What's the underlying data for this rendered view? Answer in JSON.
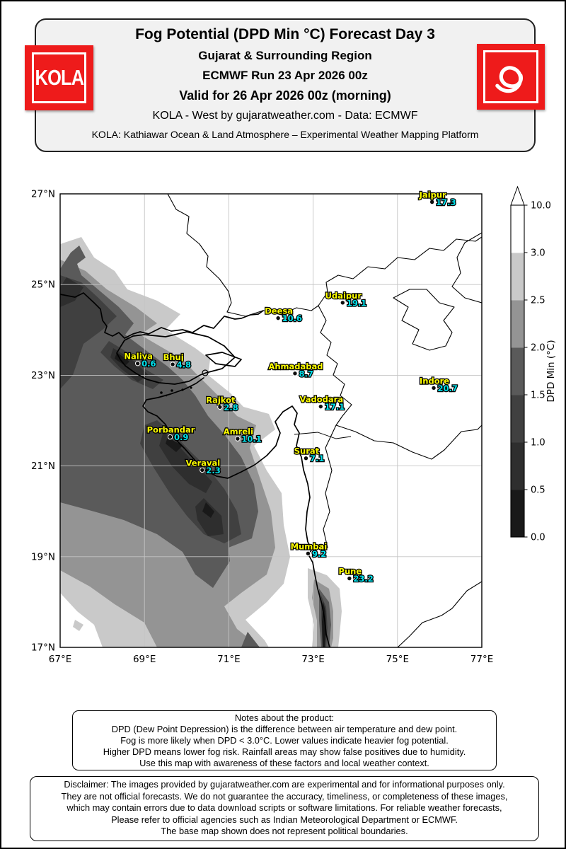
{
  "colors": {
    "brand_red": "#ee1b1b",
    "station_name": "#ffff00",
    "station_value": "#00e5f0",
    "grid": "#c4c4c4",
    "header_bg": "#f1f1f1"
  },
  "header": {
    "title": "Fog Potential (DPD Min °C) Forecast Day 3",
    "subtitle1": "Gujarat & Surrounding Region",
    "subtitle2": "ECMWF Run 23 Apr 2026 00z",
    "subtitle3": "Valid for 26 Apr 2026 00z (morning)",
    "credit": "KOLA - West by gujaratweather.com  -  Data: ECMWF",
    "tagline": "KOLA: Kathiawar Ocean & Land Atmosphere – Experimental Weather Mapping Platform",
    "logo_text": "KOLA"
  },
  "map": {
    "extent": {
      "lon_min": 67,
      "lon_max": 77,
      "lat_min": 17,
      "lat_max": 27
    },
    "lon_ticks": [
      {
        "lon": 67,
        "label": "67°E"
      },
      {
        "lon": 69,
        "label": "69°E"
      },
      {
        "lon": 71,
        "label": "71°E"
      },
      {
        "lon": 73,
        "label": "73°E"
      },
      {
        "lon": 75,
        "label": "75°E"
      },
      {
        "lon": 77,
        "label": "77°E"
      }
    ],
    "lat_ticks": [
      {
        "lat": 27,
        "label": "27°N"
      },
      {
        "lat": 25,
        "label": "25°N"
      },
      {
        "lat": 23,
        "label": "23°N"
      },
      {
        "lat": 21,
        "label": "21°N"
      },
      {
        "lat": 19,
        "label": "19°N"
      },
      {
        "lat": 17,
        "label": "17°N"
      }
    ],
    "stations": [
      {
        "name": "Jaipur",
        "value": "17.3",
        "lon": 75.82,
        "lat": 26.82
      },
      {
        "name": "Udaipur",
        "value": "19.1",
        "lon": 73.7,
        "lat": 24.6
      },
      {
        "name": "Deesa",
        "value": "10.6",
        "lon": 72.17,
        "lat": 24.26
      },
      {
        "name": "Ahmadabad",
        "value": "8.7",
        "lon": 72.57,
        "lat": 23.04
      },
      {
        "name": "Indore",
        "value": "20.7",
        "lon": 75.86,
        "lat": 22.72
      },
      {
        "name": "Vadodara",
        "value": "17.1",
        "lon": 73.18,
        "lat": 22.31
      },
      {
        "name": "Rajkot",
        "value": "2.8",
        "lon": 70.79,
        "lat": 22.3
      },
      {
        "name": "Bhuj",
        "value": "4.8",
        "lon": 69.67,
        "lat": 23.24
      },
      {
        "name": "Naliya",
        "value": "0.6",
        "lon": 68.84,
        "lat": 23.26
      },
      {
        "name": "Porbandar",
        "value": "0.9",
        "lon": 69.61,
        "lat": 21.64
      },
      {
        "name": "Amreli",
        "value": "10.1",
        "lon": 71.21,
        "lat": 21.6
      },
      {
        "name": "Veraval",
        "value": "2.3",
        "lon": 70.37,
        "lat": 20.91
      },
      {
        "name": "Surat",
        "value": "7.1",
        "lon": 72.83,
        "lat": 21.17
      },
      {
        "name": "Mumbai",
        "value": "9.2",
        "lon": 72.88,
        "lat": 19.07
      },
      {
        "name": "Pune",
        "value": "23.2",
        "lon": 73.86,
        "lat": 18.52
      }
    ]
  },
  "colorbar": {
    "label": "DPD Min (°C)",
    "tick_labels": [
      "0.0",
      "0.5",
      "1.0",
      "1.5",
      "2.0",
      "2.5",
      "3.0",
      "10.0"
    ],
    "segment_colors": [
      "#191919",
      "#2e2e2e",
      "#404040",
      "#5a5a5a",
      "#949494",
      "#c9c9c9",
      "#ffffff"
    ],
    "extend_max": true
  },
  "notes": {
    "lines": [
      "Notes about the product:",
      "DPD (Dew Point Depression) is the difference between air temperature and dew point.",
      "Fog is more likely when DPD < 3.0°C. Lower values indicate heavier fog potential.",
      "Higher DPD means lower fog risk. Rainfall areas may show false positives due to humidity.",
      "Use this map with awareness of these factors and local weather context."
    ]
  },
  "disclaimer": {
    "lines": [
      "Disclaimer: The images provided by gujaratweather.com are experimental and for informational purposes only.",
      "They are not official forecasts. We do not guarantee the accuracy, timeliness, or completeness of these images,",
      "which may contain errors due to data download scripts or software limitations. For reliable weather forecasts,",
      "Please refer to official agencies such as Indian Meteorological Department or ECMWF.",
      "The base map shown does not represent political boundaries."
    ]
  },
  "chart_data": {
    "type": "map",
    "title": "Fog Potential (DPD Min °C) Forecast Day 3",
    "region": "Gujarat & Surrounding Region",
    "extent": {
      "lon": [
        67,
        77
      ],
      "lat": [
        17,
        27
      ]
    },
    "scale_levels_c": [
      0.0,
      0.5,
      1.0,
      1.5,
      2.0,
      2.5,
      3.0,
      10.0
    ],
    "station_values_c": {
      "Jaipur": 17.3,
      "Udaipur": 19.1,
      "Deesa": 10.6,
      "Ahmadabad": 8.7,
      "Indore": 20.7,
      "Vadodara": 17.1,
      "Rajkot": 2.8,
      "Bhuj": 4.8,
      "Naliya": 0.6,
      "Porbandar": 0.9,
      "Amreli": 10.1,
      "Veraval": 2.3,
      "Surat": 7.1,
      "Mumbai": 9.2,
      "Pune": 23.2
    }
  }
}
